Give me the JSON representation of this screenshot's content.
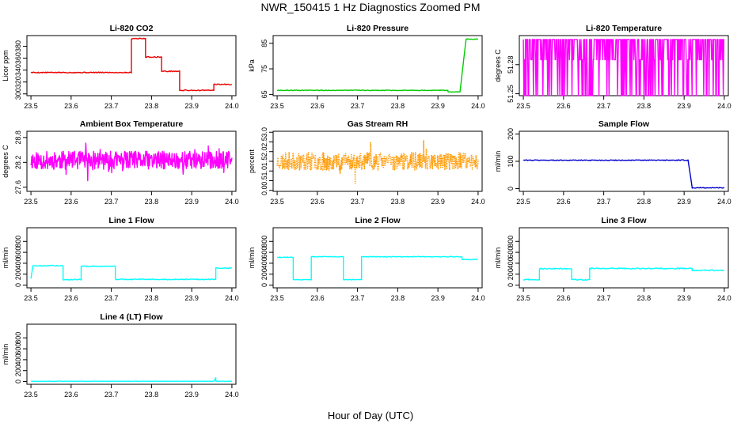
{
  "figure": {
    "title": "NWR_150415  1 Hz Diagnostics Zoomed PM",
    "xlabel": "Hour of Day (UTC)"
  },
  "chart_data": [
    {
      "id": "co2",
      "type": "line",
      "title": "Li-820 CO2",
      "ylabel": "Licor ppm",
      "color": "#ee0000",
      "xlim": [
        23.49,
        24.01
      ],
      "ylim": [
        297,
        398
      ],
      "xticks": [
        23.5,
        23.6,
        23.7,
        23.8,
        23.9,
        24.0
      ],
      "xtick_labels": [
        "23.5",
        "23.6",
        "23.7",
        "23.8",
        "23.9",
        "24.0"
      ],
      "yticks": [
        300,
        320,
        340,
        360,
        380
      ],
      "ytick_labels": [
        "300",
        "320",
        "340",
        "360",
        "380"
      ],
      "noise": 0.8,
      "segments": [
        {
          "x0": 23.5,
          "x1": 23.75,
          "y": 336
        },
        {
          "x0": 23.75,
          "x1": 23.785,
          "y": 393
        },
        {
          "x0": 23.785,
          "x1": 23.825,
          "y": 362
        },
        {
          "x0": 23.825,
          "x1": 23.87,
          "y": 338
        },
        {
          "x0": 23.87,
          "x1": 23.955,
          "y": 306
        },
        {
          "x0": 23.955,
          "x1": 24.0,
          "y": 316
        }
      ]
    },
    {
      "id": "pressure",
      "type": "line",
      "title": "Li-820 Pressure",
      "ylabel": "kPa",
      "color": "#00cc00",
      "xlim": [
        23.49,
        24.01
      ],
      "ylim": [
        64.5,
        88
      ],
      "xticks": [
        23.5,
        23.6,
        23.7,
        23.8,
        23.9,
        24.0
      ],
      "xtick_labels": [
        "23.5",
        "23.6",
        "23.7",
        "23.8",
        "23.9",
        "24.0"
      ],
      "yticks": [
        65,
        75,
        85
      ],
      "ytick_labels": [
        "65",
        "75",
        "85"
      ],
      "noise": 0.12,
      "segments": [
        {
          "x0": 23.5,
          "x1": 23.925,
          "y": 66.6
        },
        {
          "x0": 23.925,
          "x1": 23.955,
          "y": 66.0
        },
        {
          "x0": 23.955,
          "x1": 23.97,
          "y": 66.0,
          "y1": 86.5
        },
        {
          "x0": 23.97,
          "x1": 24.0,
          "y": 86.6
        }
      ]
    },
    {
      "id": "temperature",
      "type": "line",
      "title": "Li-820 Temperature",
      "ylabel": "degrees C",
      "color": "#ff00ff",
      "xlim": [
        23.49,
        24.01
      ],
      "ylim": [
        51.248,
        51.31
      ],
      "xticks": [
        23.5,
        23.6,
        23.7,
        23.8,
        23.9,
        24.0
      ],
      "xtick_labels": [
        "23.5",
        "23.6",
        "23.7",
        "23.8",
        "23.9",
        "24.0"
      ],
      "yticks": [
        51.25,
        51.28
      ],
      "ytick_labels": [
        "51.25",
        "51.28"
      ],
      "style": "toggle",
      "levels": [
        51.248,
        51.285,
        51.306
      ],
      "seed": 7
    },
    {
      "id": "ambient",
      "type": "line",
      "title": "Ambient Box Temperature",
      "ylabel": "degrees C",
      "color": "#ff00ff",
      "xlim": [
        23.49,
        24.01
      ],
      "ylim": [
        27.5,
        28.95
      ],
      "xticks": [
        23.5,
        23.6,
        23.7,
        23.8,
        23.9,
        24.0
      ],
      "xtick_labels": [
        "23.5",
        "23.6",
        "23.7",
        "23.8",
        "23.9",
        "24.0"
      ],
      "yticks": [
        27.6,
        28.2,
        28.8
      ],
      "ytick_labels": [
        "27.6",
        "28.2",
        "28.8"
      ],
      "style": "noise",
      "center": 28.25,
      "amp": 0.22,
      "seed": 11
    },
    {
      "id": "rh",
      "type": "line",
      "title": "Gas Stream RH",
      "ylabel": "percent",
      "color": "#ff9900",
      "xlim": [
        23.49,
        24.01
      ],
      "ylim": [
        -0.05,
        3.05
      ],
      "xticks": [
        23.5,
        23.6,
        23.7,
        23.8,
        23.9,
        24.0
      ],
      "xtick_labels": [
        "23.5",
        "23.6",
        "23.7",
        "23.8",
        "23.9",
        "24.0"
      ],
      "yticks": [
        0.0,
        0.5,
        1.0,
        1.5,
        2.0,
        2.5,
        3.0
      ],
      "ytick_labels": [
        "0.0",
        "0.5",
        "1.0",
        "1.5",
        "2.0",
        "2.5",
        "3.0"
      ],
      "style": "noise",
      "center": 1.5,
      "amp": 0.45,
      "seed": 23,
      "dotted": true
    },
    {
      "id": "sample_flow",
      "type": "line",
      "title": "Sample Flow",
      "ylabel": "ml/min",
      "color": "#0000cc",
      "xlim": [
        23.49,
        24.01
      ],
      "ylim": [
        -10,
        210
      ],
      "xticks": [
        23.5,
        23.6,
        23.7,
        23.8,
        23.9,
        24.0
      ],
      "xtick_labels": [
        "23.5",
        "23.6",
        "23.7",
        "23.8",
        "23.9",
        "24.0"
      ],
      "yticks": [
        0,
        100,
        200
      ],
      "ytick_labels": [
        "0",
        "100",
        "200"
      ],
      "noise": 1.5,
      "segments": [
        {
          "x0": 23.5,
          "x1": 23.91,
          "y": 104
        },
        {
          "x0": 23.91,
          "x1": 23.92,
          "y": 104,
          "y1": 3
        },
        {
          "x0": 23.92,
          "x1": 24.0,
          "y": 3
        }
      ]
    },
    {
      "id": "line1",
      "type": "line",
      "title": "Line 1 Flow",
      "ylabel": "ml/min",
      "color": "#00ffff",
      "xlim": [
        23.49,
        24.01
      ],
      "ylim": [
        -50,
        1050
      ],
      "xticks": [
        23.5,
        23.6,
        23.7,
        23.8,
        23.9,
        24.0
      ],
      "xtick_labels": [
        "23.5",
        "23.6",
        "23.7",
        "23.8",
        "23.9",
        "24.0"
      ],
      "yticks": [
        0,
        200,
        400,
        600,
        800
      ],
      "ytick_labels": [
        "0",
        "200",
        "400",
        "600",
        "800"
      ],
      "noise": 8,
      "segments": [
        {
          "x0": 23.5,
          "x1": 23.505,
          "y": 120,
          "y1": 350
        },
        {
          "x0": 23.505,
          "x1": 23.58,
          "y": 355
        },
        {
          "x0": 23.58,
          "x1": 23.625,
          "y": 100
        },
        {
          "x0": 23.625,
          "x1": 23.71,
          "y": 345
        },
        {
          "x0": 23.71,
          "x1": 23.96,
          "y": 105
        },
        {
          "x0": 23.96,
          "x1": 24.0,
          "y": 310
        }
      ]
    },
    {
      "id": "line2",
      "type": "line",
      "title": "Line 2 Flow",
      "ylabel": "ml/min",
      "color": "#00ffff",
      "xlim": [
        23.49,
        24.01
      ],
      "ylim": [
        -50,
        1050
      ],
      "xticks": [
        23.5,
        23.6,
        23.7,
        23.8,
        23.9,
        24.0
      ],
      "xtick_labels": [
        "23.5",
        "23.6",
        "23.7",
        "23.8",
        "23.9",
        "24.0"
      ],
      "yticks": [
        0,
        200,
        400,
        600,
        800
      ],
      "ytick_labels": [
        "0",
        "200",
        "400",
        "600",
        "800"
      ],
      "noise": 6,
      "segments": [
        {
          "x0": 23.5,
          "x1": 23.54,
          "y": 510
        },
        {
          "x0": 23.54,
          "x1": 23.585,
          "y": 100
        },
        {
          "x0": 23.585,
          "x1": 23.665,
          "y": 520
        },
        {
          "x0": 23.665,
          "x1": 23.71,
          "y": 100
        },
        {
          "x0": 23.71,
          "x1": 23.96,
          "y": 520
        },
        {
          "x0": 23.96,
          "x1": 24.0,
          "y": 470
        }
      ]
    },
    {
      "id": "line3",
      "type": "line",
      "title": "Line 3 Flow",
      "ylabel": "ml/min",
      "color": "#00ffff",
      "xlim": [
        23.49,
        24.01
      ],
      "ylim": [
        -50,
        1050
      ],
      "xticks": [
        23.5,
        23.6,
        23.7,
        23.8,
        23.9,
        24.0
      ],
      "xtick_labels": [
        "23.5",
        "23.6",
        "23.7",
        "23.8",
        "23.9",
        "24.0"
      ],
      "yticks": [
        0,
        200,
        400,
        600,
        800
      ],
      "ytick_labels": [
        "0",
        "200",
        "400",
        "600",
        "800"
      ],
      "noise": 10,
      "segments": [
        {
          "x0": 23.5,
          "x1": 23.54,
          "y": 100
        },
        {
          "x0": 23.54,
          "x1": 23.62,
          "y": 300
        },
        {
          "x0": 23.62,
          "x1": 23.665,
          "y": 100
        },
        {
          "x0": 23.665,
          "x1": 23.92,
          "y": 305
        },
        {
          "x0": 23.92,
          "x1": 24.0,
          "y": 270
        }
      ]
    },
    {
      "id": "line4",
      "type": "line",
      "title": "Line 4 (LT) Flow",
      "ylabel": "ml/min",
      "color": "#00ffff",
      "xlim": [
        23.49,
        24.01
      ],
      "ylim": [
        -50,
        1050
      ],
      "xticks": [
        23.5,
        23.6,
        23.7,
        23.8,
        23.9,
        24.0
      ],
      "xtick_labels": [
        "23.5",
        "23.6",
        "23.7",
        "23.8",
        "23.9",
        "24.0"
      ],
      "yticks": [
        0,
        200,
        400,
        600,
        800
      ],
      "ytick_labels": [
        "0",
        "200",
        "400",
        "600",
        "800"
      ],
      "noise": 2,
      "segments": [
        {
          "x0": 23.5,
          "x1": 23.955,
          "y": 5
        },
        {
          "x0": 23.955,
          "x1": 23.96,
          "y": 5,
          "y1": 70
        },
        {
          "x0": 23.96,
          "x1": 24.0,
          "y": 5
        }
      ]
    }
  ]
}
